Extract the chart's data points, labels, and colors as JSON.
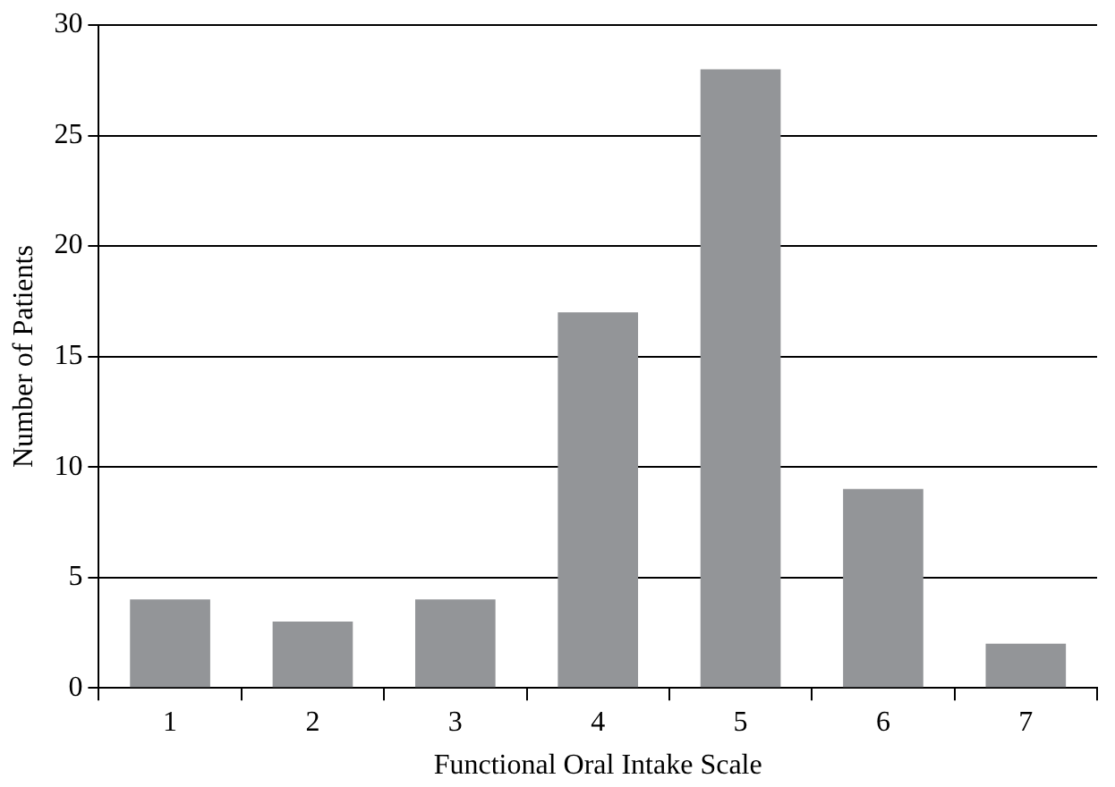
{
  "chart_data": {
    "type": "bar",
    "xlabel": "Functional Oral Intake Scale",
    "ylabel": "Number of Patients",
    "categories": [
      "1",
      "2",
      "3",
      "4",
      "5",
      "6",
      "7"
    ],
    "values": [
      4,
      3,
      4,
      17,
      28,
      9,
      2
    ],
    "color": "#939598",
    "ylim": [
      0,
      30
    ],
    "yticks": [
      0,
      5,
      10,
      15,
      20,
      25,
      30
    ],
    "grid": "y",
    "legend": false
  }
}
